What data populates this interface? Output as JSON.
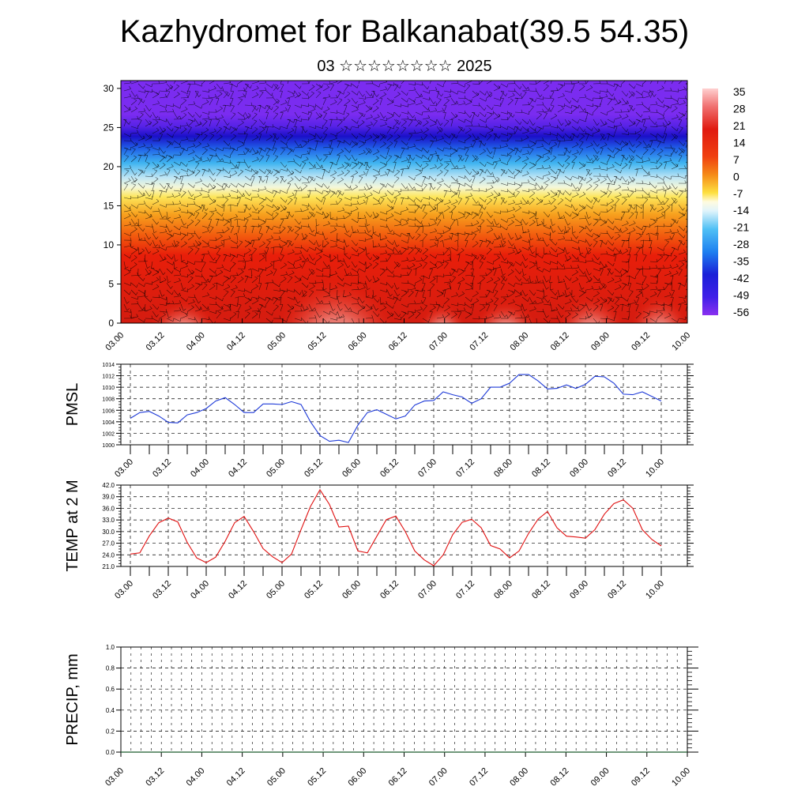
{
  "page": {
    "title": "Kazhydromet for Balkanabat(39.5 54.35)",
    "subtitle": "03 ☆☆☆☆☆☆☆☆ 2025"
  },
  "chart_data": [
    {
      "type": "heatmap",
      "ylim": [
        0,
        31
      ],
      "y_ticks": [
        0,
        5,
        10,
        15,
        20,
        25,
        30
      ],
      "x_ticks": [
        "03.00",
        "03.12",
        "04.00",
        "04.12",
        "05.00",
        "05.12",
        "06.00",
        "06.12",
        "07.00",
        "07.12",
        "08.00",
        "08.12",
        "09.00",
        "09.12",
        "10.00"
      ],
      "colorbar_labels": [
        "35",
        "28",
        "21",
        "14",
        "7",
        "0",
        "-7",
        "-14",
        "-21",
        "-28",
        "-35",
        "-42",
        "-49",
        "-56"
      ],
      "colors": {
        "low": "#7b2cf0",
        "high": "#ffd6d6",
        "barbs": "#000000"
      }
    },
    {
      "type": "line",
      "ylabel": "PMSL",
      "ylim": [
        1000,
        1014
      ],
      "y_ticks": [
        "1000",
        "1002",
        "1004",
        "1006",
        "1008",
        "1010",
        "1012",
        "1014"
      ],
      "x_ticks": [
        "03.00",
        "03.12",
        "04.00",
        "04.12",
        "05.00",
        "05.12",
        "06.00",
        "06.12",
        "07.00",
        "07.12",
        "08.00",
        "08.12",
        "09.00",
        "09.12",
        "10.00"
      ],
      "x": [
        0,
        3,
        6,
        9,
        12,
        15,
        18,
        21,
        24,
        27,
        30,
        33,
        36,
        39,
        42,
        45,
        48,
        51,
        54,
        57,
        60,
        63,
        66,
        69,
        72,
        75,
        78,
        81,
        84,
        87,
        90,
        93,
        96,
        99,
        102,
        105,
        108,
        111,
        114,
        117,
        120,
        123,
        126,
        129,
        132,
        135,
        138,
        141,
        144,
        147,
        150,
        153,
        156,
        159,
        162,
        165,
        168
      ],
      "series": [
        {
          "color": "#1e3ad8",
          "values": [
            1004.6,
            1005.6,
            1005.8,
            1005.0,
            1003.9,
            1003.8,
            1005.2,
            1005.6,
            1006.3,
            1007.6,
            1008.2,
            1007.0,
            1005.6,
            1005.6,
            1007.1,
            1007.1,
            1007.0,
            1007.5,
            1007.0,
            1004.0,
            1001.6,
            1000.6,
            1000.8,
            1000.4,
            1003.4,
            1005.6,
            1006.1,
            1005.3,
            1004.5,
            1005.0,
            1006.9,
            1007.6,
            1007.7,
            1009.2,
            1008.7,
            1008.3,
            1007.2,
            1008.0,
            1010.0,
            1010.0,
            1010.7,
            1012.2,
            1012.2,
            1011.1,
            1009.7,
            1009.8,
            1010.4,
            1009.8,
            1010.5,
            1011.9,
            1011.8,
            1010.7,
            1008.8,
            1008.7,
            1009.2,
            1008.4,
            1007.6
          ]
        }
      ]
    },
    {
      "type": "line",
      "ylabel": "TEMP at 2 M",
      "ylim": [
        21,
        42
      ],
      "y_ticks": [
        "21.0",
        "24.0",
        "27.0",
        "30.0",
        "33.0",
        "36.0",
        "39.0",
        "42.0"
      ],
      "x_ticks": [
        "03.00",
        "03.12",
        "04.00",
        "04.12",
        "05.00",
        "05.12",
        "06.00",
        "06.12",
        "07.00",
        "07.12",
        "08.00",
        "08.12",
        "09.00",
        "09.12",
        "10.00"
      ],
      "x": [
        0,
        3,
        6,
        9,
        12,
        15,
        18,
        21,
        24,
        27,
        30,
        33,
        36,
        39,
        42,
        45,
        48,
        51,
        54,
        57,
        60,
        63,
        66,
        69,
        72,
        75,
        78,
        81,
        84,
        87,
        90,
        93,
        96,
        99,
        102,
        105,
        108,
        111,
        114,
        117,
        120,
        123,
        126,
        129,
        132,
        135,
        138,
        141,
        144,
        147,
        150,
        153,
        156,
        159,
        162,
        165,
        168
      ],
      "series": [
        {
          "color": "#e01010",
          "values": [
            24.2,
            24.5,
            28.9,
            32.3,
            33.5,
            32.5,
            27.2,
            23.2,
            22.0,
            23.4,
            27.5,
            32.3,
            33.9,
            30.0,
            25.6,
            23.5,
            22.0,
            24.2,
            30.5,
            36.5,
            40.8,
            37.0,
            31.2,
            31.4,
            25.0,
            24.5,
            28.8,
            33.1,
            34.0,
            30.0,
            25.0,
            22.7,
            21.2,
            24.0,
            29.2,
            32.4,
            33.2,
            31.0,
            26.4,
            25.5,
            23.2,
            25.0,
            29.5,
            33.2,
            35.2,
            31.0,
            28.8,
            28.6,
            28.3,
            30.5,
            34.5,
            37.2,
            38.2,
            36.0,
            30.5,
            28.0,
            26.3
          ]
        }
      ]
    },
    {
      "type": "bar",
      "ylabel": "PRECIP, mm",
      "ylim": [
        0,
        1
      ],
      "y_ticks": [
        "0.0",
        "0.2",
        "0.4",
        "0.6",
        "0.8",
        "1.0"
      ],
      "x_ticks": [
        "03.00",
        "03.12",
        "04.00",
        "04.12",
        "05.00",
        "05.12",
        "06.00",
        "06.12",
        "07.00",
        "07.12",
        "08.00",
        "08.12",
        "09.00",
        "09.12",
        "10.00"
      ],
      "values": [
        0,
        0,
        0,
        0,
        0,
        0,
        0,
        0,
        0,
        0,
        0,
        0,
        0,
        0,
        0
      ]
    }
  ]
}
